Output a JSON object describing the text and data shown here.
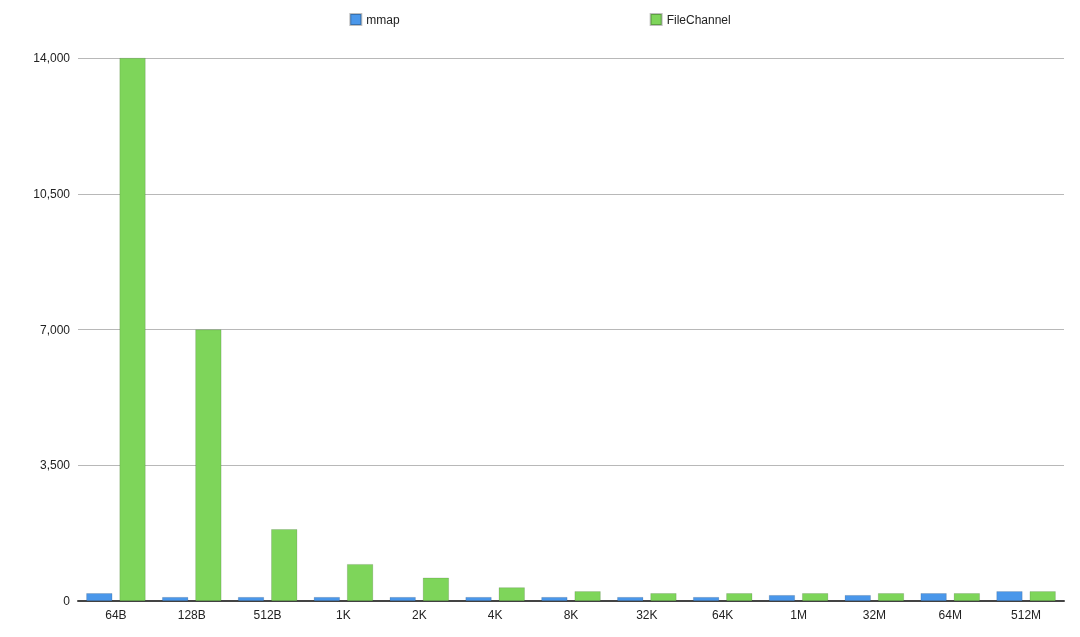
{
  "chart_data": {
    "type": "bar",
    "categories": [
      "64B",
      "128B",
      "512B",
      "1K",
      "2K",
      "4K",
      "8K",
      "32K",
      "64K",
      "1M",
      "32M",
      "64M",
      "512M"
    ],
    "series": [
      {
        "name": "mmap",
        "color": "#4a97ea",
        "values": [
          200,
          100,
          100,
          100,
          100,
          100,
          100,
          100,
          100,
          150,
          150,
          200,
          250
        ]
      },
      {
        "name": "FileChannel",
        "color": "#7ed55a",
        "values": [
          14000,
          7000,
          1850,
          950,
          600,
          350,
          250,
          200,
          200,
          200,
          200,
          200,
          250
        ]
      }
    ],
    "ylim": [
      0,
      14000
    ],
    "yticks": [
      0,
      {
        "value": 3500,
        "label": "3,500"
      },
      {
        "value": 7000,
        "label": "7,000"
      },
      {
        "value": 10500,
        "label": "10,500"
      },
      {
        "value": 14000,
        "label": "14,000"
      }
    ],
    "grid": "y",
    "legend": "top"
  }
}
